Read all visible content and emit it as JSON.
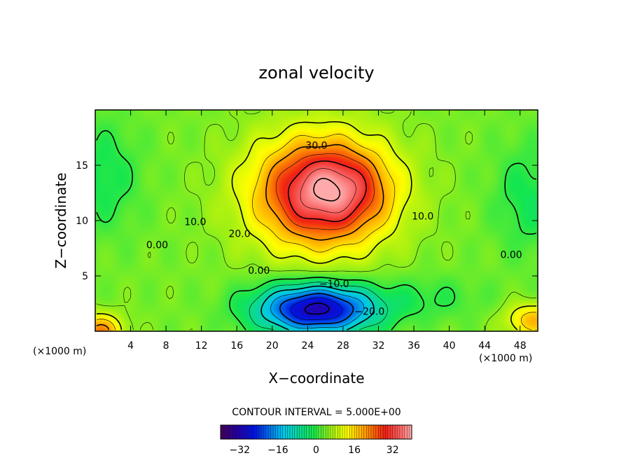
{
  "chart_data": {
    "type": "heatmap",
    "title": "zonal velocity",
    "xlabel": "X−coordinate",
    "ylabel": "Z−coordinate",
    "x_unit_left": "(×1000 m)",
    "x_unit_right": "(×1000 m)",
    "xlim": [
      0,
      50
    ],
    "ylim": [
      0,
      20
    ],
    "x_ticks": [
      4,
      8,
      12,
      16,
      20,
      24,
      28,
      32,
      36,
      40,
      44,
      48
    ],
    "y_ticks": [
      5,
      10,
      15
    ],
    "grid": false,
    "contour_interval_text": "CONTOUR INTERVAL = 5.000E+00",
    "contour_interval": 5,
    "contour_labels": [
      {
        "text": "30.0",
        "x": 25.0,
        "y": 16.5
      },
      {
        "text": "10.0",
        "x": 11.3,
        "y": 9.6
      },
      {
        "text": "20.0",
        "x": 16.3,
        "y": 8.5
      },
      {
        "text": "0.00",
        "x": 7.0,
        "y": 7.5
      },
      {
        "text": "0.00",
        "x": 18.5,
        "y": 5.2
      },
      {
        "text": "10.0",
        "x": 37.0,
        "y": 10.1
      },
      {
        "text": "0.00",
        "x": 47.0,
        "y": 6.6
      },
      {
        "text": "−10.0",
        "x": 27.0,
        "y": 4.0
      },
      {
        "text": "−20.0",
        "x": 31.0,
        "y": 1.5
      }
    ],
    "field": {
      "background": 4,
      "features": [
        {
          "cx": 25.5,
          "cy": 12.5,
          "rx": 7.5,
          "ry": 5.0,
          "amp": 31
        },
        {
          "cx": 28.0,
          "cy": 13.0,
          "rx": 5.0,
          "ry": 3.0,
          "amp": 8
        },
        {
          "cx": 25.0,
          "cy": 2.0,
          "rx": 6.5,
          "ry": 2.2,
          "amp": -36
        },
        {
          "cx": 0.5,
          "cy": 0.0,
          "rx": 2.5,
          "ry": 1.5,
          "amp": 18
        },
        {
          "cx": 49.5,
          "cy": 1.0,
          "rx": 3.0,
          "ry": 1.5,
          "amp": 14
        },
        {
          "cx": 1.0,
          "cy": 14.0,
          "rx": 4.0,
          "ry": 5.0,
          "amp": -6
        },
        {
          "cx": 49.0,
          "cy": 12.0,
          "rx": 4.0,
          "ry": 5.0,
          "amp": -6
        },
        {
          "cx": 38.0,
          "cy": 3.0,
          "rx": 6.0,
          "ry": 2.0,
          "amp": -4
        }
      ]
    },
    "colorbar": {
      "range": [
        -40,
        40
      ],
      "ticks": [
        {
          "value": -32,
          "label": "−32"
        },
        {
          "value": -16,
          "label": "−16"
        },
        {
          "value": 0,
          "label": "0"
        },
        {
          "value": 16,
          "label": "16"
        },
        {
          "value": 32,
          "label": "32"
        }
      ]
    }
  }
}
